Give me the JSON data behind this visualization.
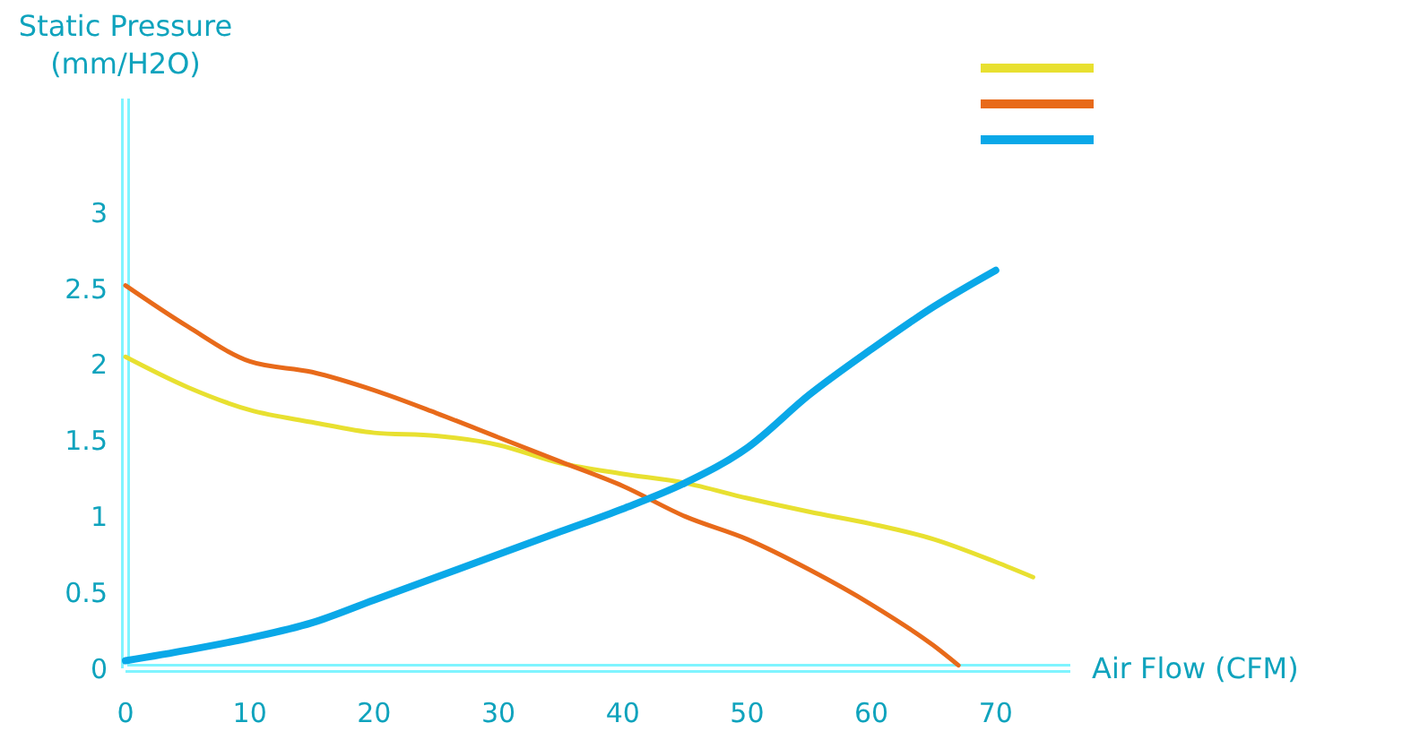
{
  "chart_data": {
    "type": "line",
    "xlabel": "Air Flow (CFM)",
    "ylabel": "Static Pressure (mm/H2O)",
    "xlim": [
      0,
      76
    ],
    "xticks": [
      0,
      10,
      20,
      30,
      40,
      50,
      60,
      70
    ],
    "ylim": [
      0,
      3.75
    ],
    "yticks": [
      0,
      0.5,
      1,
      1.5,
      2,
      2.5,
      3
    ],
    "grid": false,
    "line_style": "solid",
    "marker": "none",
    "series": [
      {
        "color": "#e8e030",
        "x": [
          0,
          5,
          10,
          15,
          20,
          25,
          30,
          35,
          40,
          45,
          50,
          55,
          60,
          65,
          70,
          73
        ],
        "values": [
          2.05,
          1.85,
          1.7,
          1.62,
          1.55,
          1.53,
          1.47,
          1.35,
          1.28,
          1.22,
          1.12,
          1.03,
          0.95,
          0.85,
          0.7,
          0.6
        ]
      },
      {
        "color": "#e86a1a",
        "x": [
          0,
          5,
          10,
          15,
          20,
          25,
          30,
          35,
          40,
          45,
          50,
          55,
          60,
          65,
          67
        ],
        "values": [
          2.52,
          2.25,
          2.02,
          1.95,
          1.83,
          1.68,
          1.52,
          1.36,
          1.2,
          1.0,
          0.85,
          0.65,
          0.42,
          0.15,
          0.02
        ]
      },
      {
        "color": "#0aa8e8",
        "x": [
          0,
          5,
          10,
          15,
          20,
          25,
          30,
          35,
          40,
          45,
          50,
          55,
          60,
          65,
          70
        ],
        "values": [
          0.05,
          0.12,
          0.2,
          0.3,
          0.45,
          0.6,
          0.75,
          0.9,
          1.05,
          1.22,
          1.45,
          1.8,
          2.1,
          2.38,
          2.62
        ]
      }
    ]
  }
}
